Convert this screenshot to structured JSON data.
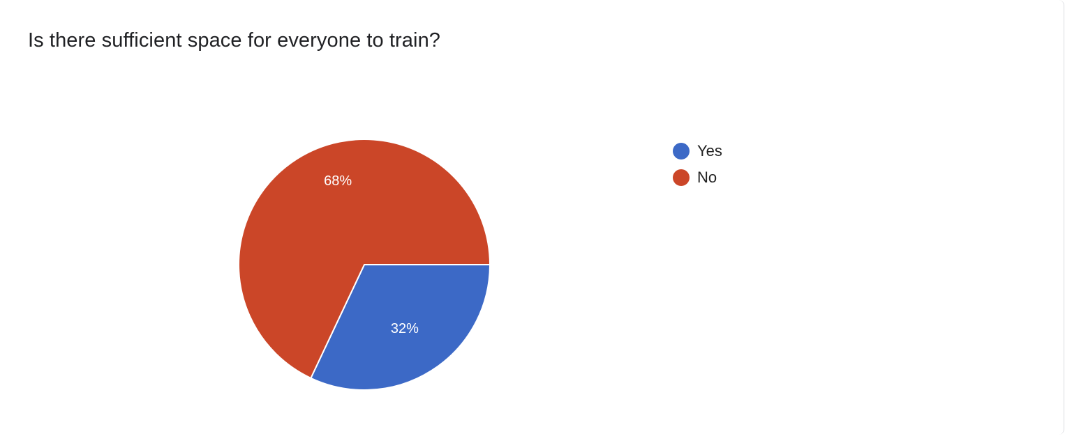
{
  "chart_data": {
    "type": "pie",
    "title": "Is there sufficient space for everyone to train?",
    "categories": [
      "Yes",
      "No"
    ],
    "values": [
      32,
      68
    ],
    "data_labels": [
      "32%",
      "68%"
    ],
    "colors": [
      "#3c69c6",
      "#cb4628"
    ],
    "legend_position": "right",
    "start_angle": "3 o'clock, clockwise"
  }
}
